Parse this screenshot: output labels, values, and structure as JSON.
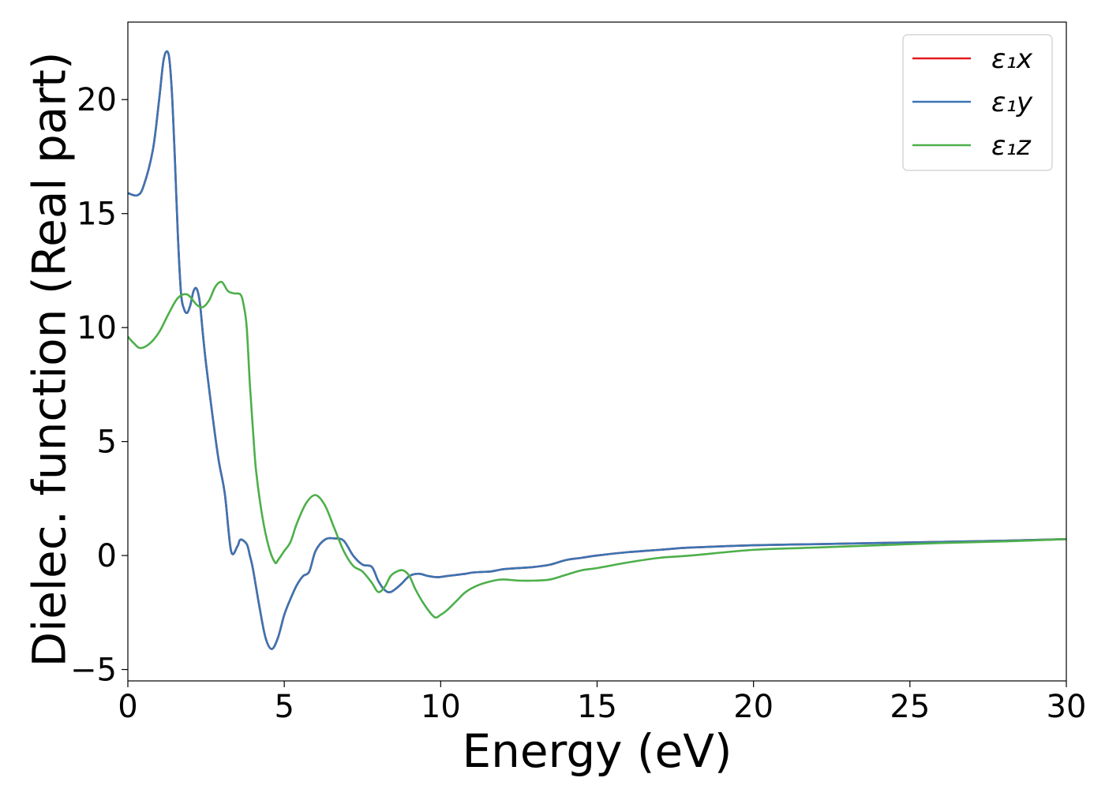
{
  "chart_data": {
    "type": "line",
    "title": "",
    "xlabel": "Energy (eV)",
    "ylabel": "Dielec. function (Real part)",
    "xlim": [
      0,
      30
    ],
    "ylim": [
      -5.5,
      23.4
    ],
    "xticks": [
      0,
      5,
      10,
      15,
      20,
      25,
      30
    ],
    "xtick_labels": [
      "0",
      "5",
      "10",
      "15",
      "20",
      "25",
      "30"
    ],
    "yticks": [
      -5,
      0,
      5,
      10,
      15,
      20
    ],
    "ytick_labels": [
      "−5",
      "0",
      "5",
      "10",
      "15",
      "20"
    ],
    "grid": false,
    "legend": {
      "position": "top-right"
    },
    "series": [
      {
        "name": "ε₁x",
        "color": "#e41a1c",
        "x": [
          0,
          0.3,
          0.5,
          0.8,
          1.0,
          1.15,
          1.3,
          1.4,
          1.5,
          1.6,
          1.7,
          1.8,
          1.9,
          2.0,
          2.1,
          2.2,
          2.3,
          2.4,
          2.5,
          2.7,
          2.9,
          3.1,
          3.3,
          3.5,
          3.6,
          3.8,
          3.9,
          4.0,
          4.2,
          4.4,
          4.6,
          4.8,
          5.0,
          5.2,
          5.4,
          5.6,
          5.8,
          6.0,
          6.3,
          6.6,
          6.9,
          7.2,
          7.5,
          7.8,
          8.0,
          8.2,
          8.4,
          8.7,
          9.0,
          9.3,
          9.6,
          9.9,
          10.2,
          10.5,
          10.8,
          11.0,
          11.3,
          11.6,
          12.0,
          12.5,
          13.0,
          13.5,
          14.0,
          14.5,
          15.0,
          16.0,
          17.0,
          18.0,
          20.0,
          22.0,
          24.0,
          26.0,
          28.0,
          30.0
        ],
        "values": [
          15.9,
          15.8,
          16.2,
          17.8,
          20.0,
          21.8,
          22.0,
          20.5,
          17.5,
          14.0,
          11.5,
          10.8,
          10.65,
          11.0,
          11.6,
          11.7,
          11.1,
          9.7,
          8.4,
          6.2,
          4.2,
          2.7,
          0.2,
          0.4,
          0.7,
          0.5,
          0.0,
          -0.6,
          -2.2,
          -3.6,
          -4.1,
          -3.6,
          -2.6,
          -1.9,
          -1.3,
          -0.9,
          -0.7,
          0.2,
          0.7,
          0.75,
          0.65,
          0.0,
          -0.4,
          -0.5,
          -1.1,
          -1.5,
          -1.6,
          -1.3,
          -0.9,
          -0.8,
          -0.9,
          -0.95,
          -0.9,
          -0.85,
          -0.8,
          -0.75,
          -0.72,
          -0.7,
          -0.6,
          -0.55,
          -0.5,
          -0.4,
          -0.2,
          -0.1,
          0.0,
          0.15,
          0.25,
          0.35,
          0.45,
          0.5,
          0.55,
          0.6,
          0.65,
          0.72
        ]
      },
      {
        "name": "ε₁y",
        "color": "#3a74b3",
        "x": [
          0,
          0.3,
          0.5,
          0.8,
          1.0,
          1.15,
          1.3,
          1.4,
          1.5,
          1.6,
          1.7,
          1.8,
          1.9,
          2.0,
          2.1,
          2.2,
          2.3,
          2.4,
          2.5,
          2.7,
          2.9,
          3.1,
          3.3,
          3.5,
          3.6,
          3.8,
          3.9,
          4.0,
          4.2,
          4.4,
          4.6,
          4.8,
          5.0,
          5.2,
          5.4,
          5.6,
          5.8,
          6.0,
          6.3,
          6.6,
          6.9,
          7.2,
          7.5,
          7.8,
          8.0,
          8.2,
          8.4,
          8.7,
          9.0,
          9.3,
          9.6,
          9.9,
          10.2,
          10.5,
          10.8,
          11.0,
          11.3,
          11.6,
          12.0,
          12.5,
          13.0,
          13.5,
          14.0,
          14.5,
          15.0,
          16.0,
          17.0,
          18.0,
          20.0,
          22.0,
          24.0,
          26.0,
          28.0,
          30.0
        ],
        "values": [
          15.9,
          15.8,
          16.2,
          17.8,
          20.0,
          21.8,
          22.0,
          20.5,
          17.5,
          14.0,
          11.5,
          10.8,
          10.65,
          11.0,
          11.6,
          11.7,
          11.1,
          9.7,
          8.4,
          6.2,
          4.2,
          2.7,
          0.2,
          0.4,
          0.7,
          0.5,
          0.0,
          -0.6,
          -2.2,
          -3.6,
          -4.1,
          -3.6,
          -2.6,
          -1.9,
          -1.3,
          -0.9,
          -0.7,
          0.2,
          0.7,
          0.75,
          0.65,
          0.0,
          -0.4,
          -0.5,
          -1.1,
          -1.5,
          -1.6,
          -1.3,
          -0.9,
          -0.8,
          -0.9,
          -0.95,
          -0.9,
          -0.85,
          -0.8,
          -0.75,
          -0.72,
          -0.7,
          -0.6,
          -0.55,
          -0.5,
          -0.4,
          -0.2,
          -0.1,
          0.0,
          0.15,
          0.25,
          0.35,
          0.45,
          0.5,
          0.55,
          0.6,
          0.65,
          0.72
        ]
      },
      {
        "name": "ε₁z",
        "color": "#4daf4a",
        "x": [
          0,
          0.2,
          0.4,
          0.7,
          1.0,
          1.3,
          1.6,
          1.9,
          2.2,
          2.4,
          2.6,
          2.8,
          3.0,
          3.2,
          3.4,
          3.6,
          3.7,
          3.8,
          3.9,
          4.0,
          4.1,
          4.3,
          4.5,
          4.7,
          4.8,
          5.0,
          5.2,
          5.4,
          5.7,
          6.0,
          6.3,
          6.6,
          6.9,
          7.2,
          7.5,
          7.8,
          8.0,
          8.2,
          8.4,
          8.6,
          8.8,
          9.0,
          9.2,
          9.5,
          9.8,
          10.0,
          10.2,
          10.5,
          10.8,
          11.2,
          11.7,
          12.0,
          12.5,
          13.0,
          13.5,
          14.0,
          14.5,
          15.0,
          16.0,
          17.0,
          18.0,
          20.0,
          22.0,
          24.0,
          26.0,
          28.0,
          30.0
        ],
        "values": [
          9.6,
          9.3,
          9.1,
          9.3,
          9.8,
          10.6,
          11.3,
          11.45,
          11.0,
          10.9,
          11.2,
          11.8,
          12.0,
          11.6,
          11.5,
          11.45,
          11.0,
          10.0,
          7.5,
          5.5,
          3.7,
          1.7,
          0.4,
          -0.3,
          -0.2,
          0.2,
          0.6,
          1.4,
          2.3,
          2.65,
          2.2,
          1.2,
          0.2,
          -0.45,
          -0.7,
          -1.2,
          -1.6,
          -1.4,
          -0.9,
          -0.7,
          -0.65,
          -0.9,
          -1.5,
          -2.2,
          -2.7,
          -2.6,
          -2.4,
          -2.0,
          -1.6,
          -1.3,
          -1.1,
          -1.05,
          -1.1,
          -1.1,
          -1.05,
          -0.85,
          -0.65,
          -0.55,
          -0.3,
          -0.1,
          0.0,
          0.25,
          0.35,
          0.45,
          0.55,
          0.62,
          0.72
        ]
      }
    ]
  }
}
